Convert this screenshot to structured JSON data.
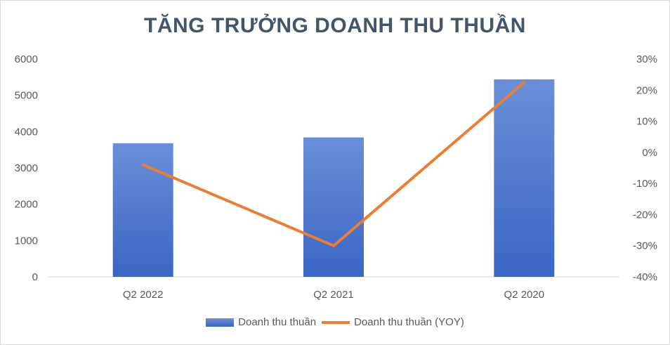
{
  "chart_data": {
    "type": "bar",
    "title": "TĂNG TRƯỞNG DOANH THU THUẦN",
    "categories": [
      "Q2 2022",
      "Q2 2021",
      "Q2 2020"
    ],
    "series": [
      {
        "name": "Doanh thu thuần",
        "type": "bar",
        "axis": "left",
        "values": [
          3680,
          3840,
          5440
        ],
        "color": "#4472c4"
      },
      {
        "name": "Doanh thu thuần (YOY)",
        "type": "line",
        "axis": "right",
        "values": [
          -4,
          -30,
          22.5
        ],
        "color": "#ed7d31"
      }
    ],
    "y_left": {
      "range": [
        0,
        6000
      ],
      "ticks": [
        "0",
        "1000",
        "2000",
        "3000",
        "4000",
        "5000",
        "6000"
      ]
    },
    "y_right": {
      "range": [
        -40,
        30
      ],
      "ticks": [
        "-40%",
        "-30%",
        "-20%",
        "-10%",
        "0%",
        "10%",
        "20%",
        "30%"
      ]
    },
    "grid": false,
    "legend_position": "bottom"
  }
}
